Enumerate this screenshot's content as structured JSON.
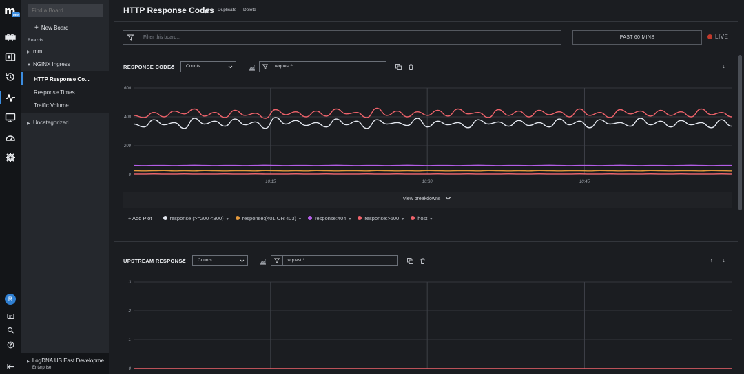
{
  "rail": {
    "logo": "m",
    "logo_badge": "DEV",
    "avatar_initial": "R"
  },
  "sidebar": {
    "search_placeholder": "Find a Board",
    "new_board": "New Board",
    "section_label": "Boards",
    "groups": [
      {
        "label": "mm"
      },
      {
        "label": "NGINX Ingress"
      },
      {
        "label": "Uncategorized"
      }
    ],
    "items": [
      {
        "label": "HTTP Response Co..."
      },
      {
        "label": "Response Times"
      },
      {
        "label": "Traffic Volume"
      }
    ],
    "account": {
      "name": "LogDNA US East Developme...",
      "plan": "Enterprise"
    }
  },
  "header": {
    "title": "HTTP Response Codes",
    "duplicate": "Duplicate",
    "delete": "Delete"
  },
  "filter": {
    "placeholder": "Filter this board..."
  },
  "time_range": "PAST 60 MINS",
  "live_label": "LIVE",
  "panels": [
    {
      "title": "RESPONSE CODES",
      "aggregation": "Counts",
      "query": "request:*",
      "view_breakdowns": "View breakdowns",
      "add_plot": "+ Add Plot"
    },
    {
      "title": "UPSTREAM RESPONSE",
      "aggregation": "Counts",
      "query": "request:*"
    }
  ],
  "colors": {
    "accent": "#3c8de0",
    "series_200": "#e4e8f0",
    "series_401_403": "#e59a3d",
    "series_404": "#b45ee8",
    "series_500": "#f0636b",
    "series_host": "#f0636b"
  },
  "chart_data": [
    {
      "type": "line",
      "title": "RESPONSE CODES",
      "ylim": [
        0,
        600
      ],
      "y_ticks": [
        "600",
        "400",
        "200",
        "0"
      ],
      "x_ticks": [
        "10:15",
        "10:30",
        "10:45"
      ],
      "grid": true,
      "legend": "bottom",
      "series": [
        {
          "name": "response:(>=200 <300)",
          "color": "#e4e8f0",
          "values": [
            350,
            330,
            380,
            345,
            360,
            320,
            390,
            350,
            370,
            335,
            385,
            345,
            365,
            320,
            395,
            350,
            375,
            340,
            360,
            330,
            385,
            345,
            370,
            320,
            380,
            350,
            360,
            340,
            390,
            330,
            370,
            345,
            360,
            325,
            380,
            350,
            365,
            335,
            375,
            340,
            360,
            330,
            385,
            345,
            370,
            325,
            380,
            350,
            360,
            335,
            390,
            345,
            370,
            330,
            375,
            345,
            360,
            325,
            380,
            335
          ]
        },
        {
          "name": "response:(401 OR 403)",
          "color": "#e59a3d",
          "values": [
            26,
            25,
            26,
            27,
            25,
            26,
            25,
            27,
            26,
            25,
            26,
            26,
            25,
            27,
            26,
            25,
            26,
            25,
            27,
            26,
            25,
            26,
            26,
            25,
            27,
            26,
            25,
            26,
            25,
            27,
            26,
            25,
            26,
            26,
            25,
            27,
            26,
            25,
            26,
            25,
            27,
            26,
            25,
            26,
            26,
            25,
            27,
            26,
            25,
            26,
            25,
            27,
            26,
            25,
            26,
            26,
            25,
            27,
            26,
            25
          ]
        },
        {
          "name": "response:404",
          "color": "#b45ee8",
          "values": [
            64,
            63,
            64,
            64,
            63,
            64,
            65,
            64,
            63,
            64,
            64,
            63,
            64,
            65,
            64,
            63,
            64,
            64,
            63,
            64,
            65,
            64,
            63,
            64,
            64,
            63,
            64,
            65,
            64,
            63,
            64,
            64,
            63,
            64,
            65,
            64,
            63,
            64,
            64,
            63,
            64,
            65,
            64,
            63,
            64,
            64,
            63,
            64,
            65,
            64,
            63,
            64,
            64,
            63,
            64,
            65,
            64,
            63,
            64,
            64
          ]
        },
        {
          "name": "response:>500",
          "color": "#f0636b",
          "values": [
            5,
            5,
            6,
            5,
            5,
            6,
            5,
            5,
            5,
            6,
            5,
            5,
            6,
            5,
            5,
            5,
            6,
            5,
            5,
            6,
            5,
            5,
            5,
            6,
            5,
            5,
            6,
            5,
            5,
            5,
            6,
            5,
            5,
            6,
            5,
            5,
            5,
            6,
            5,
            5,
            6,
            5,
            5,
            5,
            6,
            5,
            5,
            6,
            5,
            5,
            5,
            6,
            5,
            5,
            6,
            5,
            5,
            5,
            6,
            5
          ]
        },
        {
          "name": "host",
          "color": "#f0636b",
          "values": [
            410,
            395,
            430,
            400,
            440,
            420,
            455,
            405,
            430,
            395,
            445,
            410,
            425,
            390,
            450,
            415,
            435,
            400,
            440,
            405,
            455,
            420,
            430,
            395,
            460,
            410,
            440,
            400,
            435,
            410,
            445,
            405,
            455,
            420,
            430,
            395,
            450,
            410,
            440,
            400,
            445,
            415,
            435,
            400,
            455,
            410,
            430,
            395,
            450,
            420,
            440,
            405,
            445,
            410,
            435,
            400,
            455,
            415,
            430,
            400
          ]
        }
      ]
    },
    {
      "type": "line",
      "title": "UPSTREAM RESPONSE",
      "ylim": [
        0,
        3
      ],
      "y_ticks": [
        "3",
        "2",
        "1",
        "0"
      ],
      "grid": true,
      "series": [
        {
          "color": "#f0636b",
          "values": [
            0,
            0,
            0,
            0,
            0,
            0,
            0,
            0,
            0,
            0,
            0,
            0,
            0,
            0,
            0,
            0,
            0,
            0,
            0,
            0,
            0,
            0,
            0,
            0,
            0,
            0,
            0,
            0,
            0,
            0,
            0,
            0,
            0,
            0,
            0,
            0,
            0,
            0,
            0,
            0,
            0,
            0,
            0,
            0,
            0,
            0,
            0,
            0,
            0,
            0,
            0,
            0,
            0,
            0,
            0,
            0,
            0,
            0,
            0,
            0
          ]
        }
      ]
    }
  ]
}
